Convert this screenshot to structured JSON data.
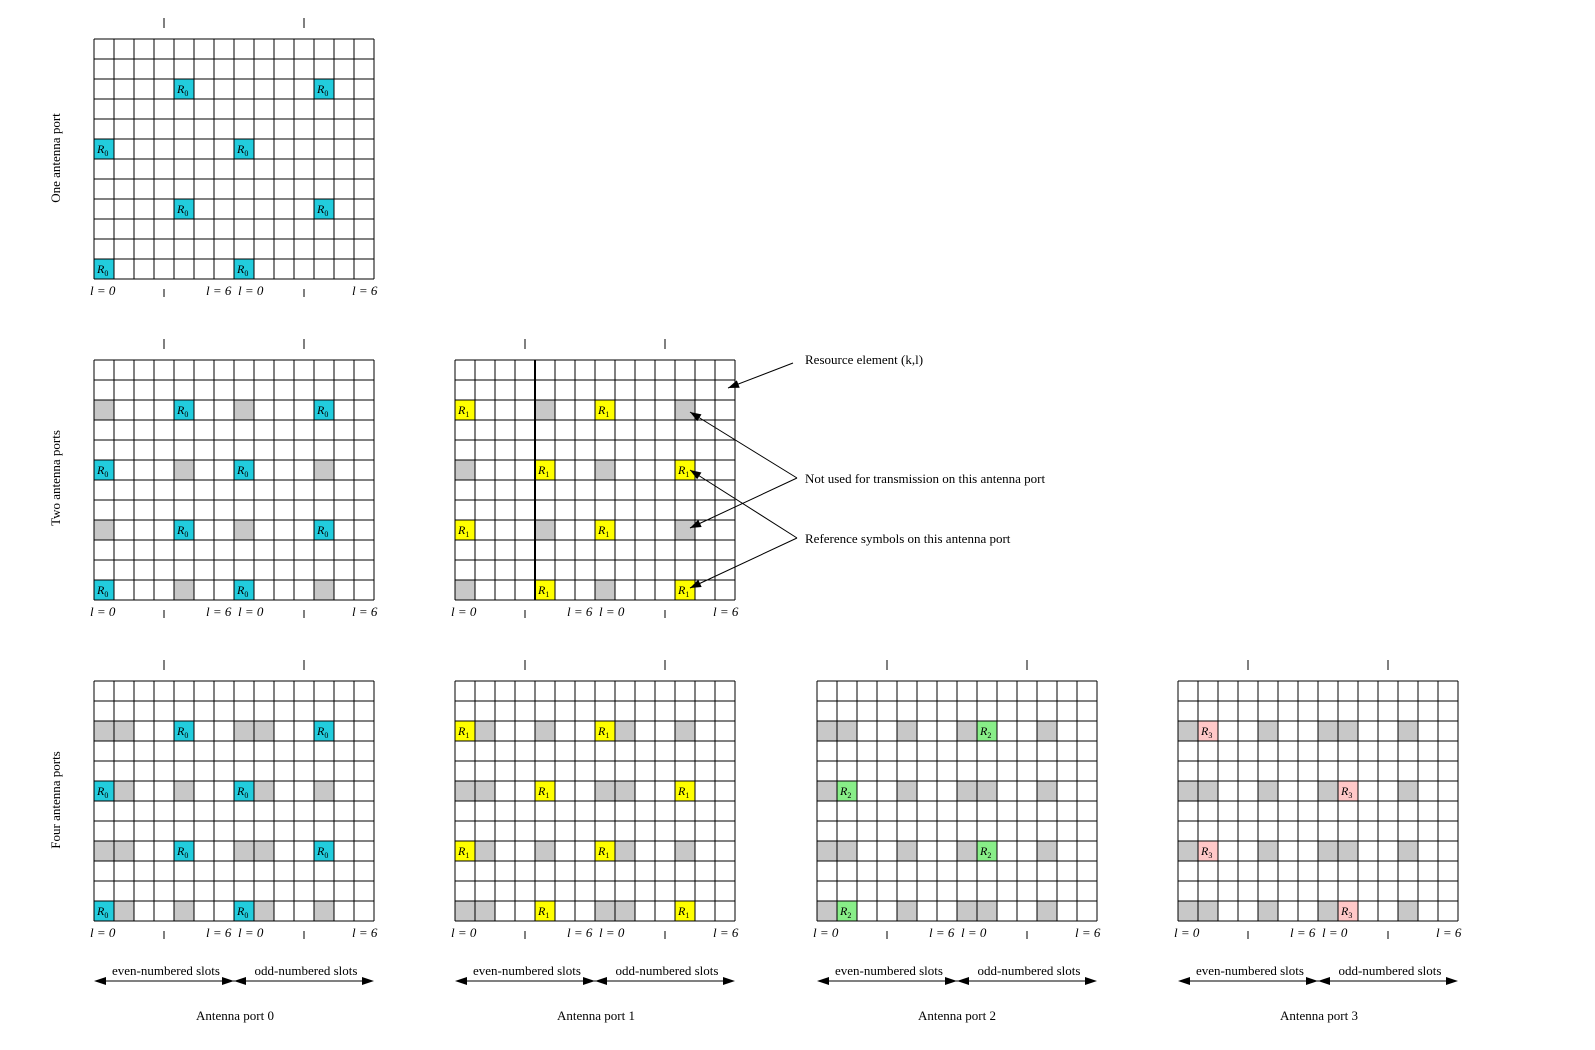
{
  "rows": [
    {
      "label": "One antenna port",
      "ports": [
        0
      ]
    },
    {
      "label": "Two antenna ports",
      "ports": [
        0,
        1
      ]
    },
    {
      "label": "Four antenna ports",
      "ports": [
        0,
        1,
        2,
        3
      ]
    }
  ],
  "ports": [
    {
      "id": 0,
      "label": "Antenna port 0",
      "symbol": "R",
      "sub": "0",
      "color": "#22ccdd"
    },
    {
      "id": 1,
      "label": "Antenna port 1",
      "symbol": "R",
      "sub": "1",
      "color": "#ffff00"
    },
    {
      "id": 2,
      "label": "Antenna port 2",
      "symbol": "R",
      "sub": "2",
      "color": "#88ee88"
    },
    {
      "id": 3,
      "label": "Antenna port 3",
      "symbol": "R",
      "sub": "3",
      "color": "#ffc8c8"
    }
  ],
  "unused_color": "#c8c8c8",
  "grid_columns": 14,
  "grid_rows": 12,
  "axis_labels": {
    "l0": "l = 0",
    "l6": "l = 6"
  },
  "slot_labels": {
    "even": "even-numbered slots",
    "odd": "odd-numbered slots"
  },
  "annotations": {
    "resource_element": "Resource element (k,l)",
    "not_used": "Not used for transmission on this antenna port",
    "reference": "Reference symbols on this antenna port"
  }
}
